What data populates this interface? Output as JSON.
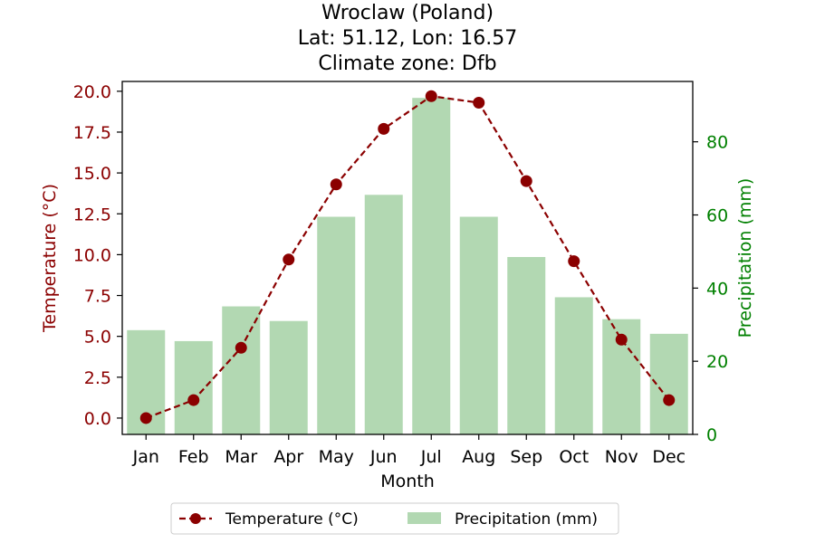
{
  "chart_data": {
    "type": "bar+line",
    "title": [
      "Wroclaw (Poland)",
      "Lat: 51.12, Lon: 16.57",
      "Climate zone: Dfb"
    ],
    "xlabel": "Month",
    "categories": [
      "Jan",
      "Feb",
      "Mar",
      "Apr",
      "May",
      "Jun",
      "Jul",
      "Aug",
      "Sep",
      "Oct",
      "Nov",
      "Dec"
    ],
    "series": [
      {
        "name": "Temperature (°C)",
        "kind": "line",
        "axis": "left",
        "values": [
          0.0,
          1.1,
          4.3,
          9.7,
          14.3,
          17.7,
          19.7,
          19.3,
          14.5,
          9.6,
          4.8,
          1.1
        ]
      },
      {
        "name": "Precipitation (mm)",
        "kind": "bar",
        "axis": "right",
        "values": [
          28.5,
          25.5,
          35.0,
          31.0,
          59.5,
          65.5,
          92.0,
          59.5,
          48.5,
          37.5,
          31.5,
          27.5
        ]
      }
    ],
    "ylabel_left": "Temperature (°C)",
    "ylabel_right": "Precipitation (mm)",
    "ylim_left": [
      -1.0,
      20.6
    ],
    "ylim_right": [
      0,
      96.5
    ],
    "yticks_left": [
      "0.0",
      "2.5",
      "5.0",
      "7.5",
      "10.0",
      "12.5",
      "15.0",
      "17.5",
      "20.0"
    ],
    "yticks_right": [
      "0",
      "20",
      "40",
      "60",
      "80"
    ],
    "legend_position": "bottom-center",
    "grid": false,
    "colors": {
      "temperature": "#8b0000",
      "precipitation_bar": "#b2d8b2",
      "precipitation_axis": "#008000"
    }
  }
}
